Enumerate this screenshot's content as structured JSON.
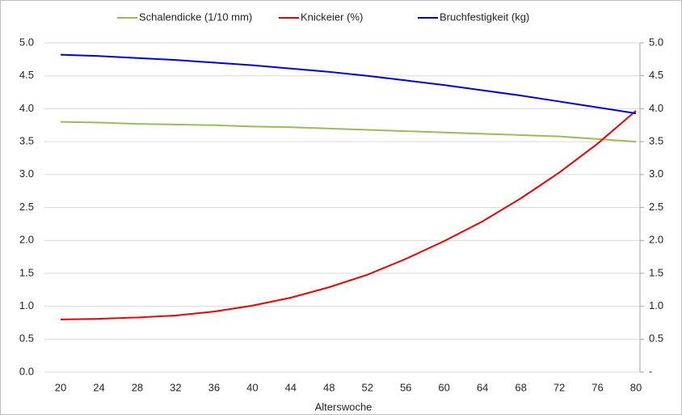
{
  "chart_data": {
    "type": "line",
    "x_label": "Alterswoche",
    "x": [
      20,
      24,
      28,
      32,
      36,
      40,
      44,
      48,
      52,
      56,
      60,
      64,
      68,
      72,
      76,
      80
    ],
    "xlim": [
      20,
      80
    ],
    "xticks": [
      20,
      24,
      28,
      32,
      36,
      40,
      44,
      48,
      52,
      56,
      60,
      64,
      68,
      72,
      76,
      80
    ],
    "ylim": [
      0,
      5
    ],
    "yticks": [
      {
        "value": 0,
        "label": "0.0"
      },
      {
        "value": 0.5,
        "label": "0.5"
      },
      {
        "value": 1,
        "label": "1.0"
      },
      {
        "value": 1.5,
        "label": "1.5"
      },
      {
        "value": 2,
        "label": "2.0"
      },
      {
        "value": 2.5,
        "label": "2.5"
      },
      {
        "value": 3,
        "label": "3.0"
      },
      {
        "value": 3.5,
        "label": "3.5"
      },
      {
        "value": 4,
        "label": "4.0"
      },
      {
        "value": 4.5,
        "label": "4.5"
      },
      {
        "value": 5,
        "label": "5.0"
      }
    ],
    "y2lim": [
      0,
      5
    ],
    "y2ticks": [
      {
        "value": 0,
        "label": "-"
      },
      {
        "value": 0.5,
        "label": "0.5"
      },
      {
        "value": 1,
        "label": "1.0"
      },
      {
        "value": 1.5,
        "label": "1.5"
      },
      {
        "value": 2,
        "label": "2.0"
      },
      {
        "value": 2.5,
        "label": "2.5"
      },
      {
        "value": 3,
        "label": "3.0"
      },
      {
        "value": 3.5,
        "label": "3.5"
      },
      {
        "value": 4,
        "label": "4.0"
      },
      {
        "value": 4.5,
        "label": "4.5"
      },
      {
        "value": 5,
        "label": "5.0"
      }
    ],
    "grid": true,
    "legend": "top",
    "series": [
      {
        "name": "Schalendicke (1/10 mm)",
        "color": "#9bbb59",
        "values": [
          3.8,
          3.79,
          3.77,
          3.76,
          3.75,
          3.73,
          3.72,
          3.7,
          3.68,
          3.66,
          3.64,
          3.62,
          3.6,
          3.58,
          3.54,
          3.5
        ]
      },
      {
        "name": "Knickeier (%)",
        "color": "#ee0000",
        "values": [
          0.8,
          0.81,
          0.83,
          0.86,
          0.92,
          1.01,
          1.13,
          1.29,
          1.48,
          1.72,
          1.99,
          2.29,
          2.64,
          3.03,
          3.47,
          3.97
        ]
      },
      {
        "name": "Bruchfestigkeit (kg)",
        "color": "#0000dd",
        "values": [
          4.82,
          4.8,
          4.77,
          4.74,
          4.7,
          4.66,
          4.61,
          4.56,
          4.5,
          4.43,
          4.36,
          4.28,
          4.2,
          4.11,
          4.02,
          3.93
        ]
      }
    ]
  }
}
